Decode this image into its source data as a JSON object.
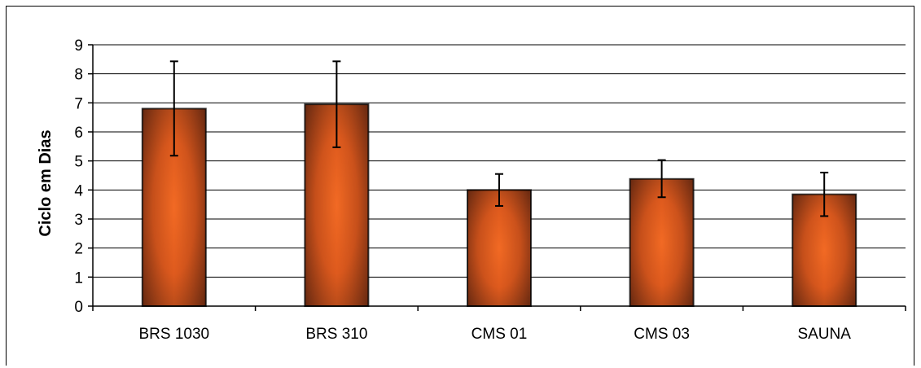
{
  "chart_data": {
    "type": "bar",
    "title": "",
    "xlabel": "",
    "ylabel": "Ciclo em Dias",
    "categories": [
      "BRS 1030",
      "BRS 310",
      "CMS 01",
      "CMS 03",
      "SAUNA"
    ],
    "values": [
      6.8,
      6.95,
      4.0,
      4.38,
      3.85
    ],
    "error_low": [
      5.18,
      5.47,
      3.45,
      3.75,
      3.1
    ],
    "error_high": [
      8.43,
      8.43,
      4.55,
      5.03,
      4.6
    ],
    "ylim": [
      0,
      9
    ],
    "yticks": [
      "0",
      "1",
      "2",
      "3",
      "4",
      "5",
      "6",
      "7",
      "8",
      "9"
    ],
    "grid": true,
    "legend": "none",
    "colors": {
      "bar_center": "#f26a24",
      "bar_edge": "#5a2410",
      "grid": "#000000"
    }
  }
}
